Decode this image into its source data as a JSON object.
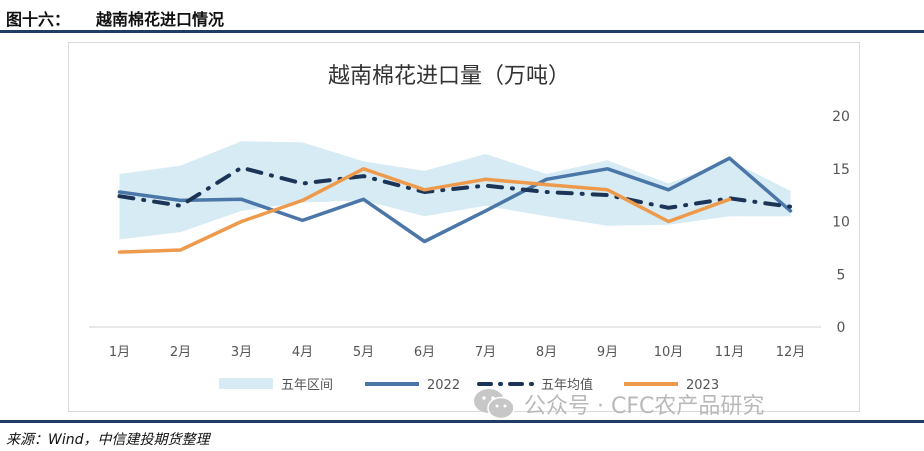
{
  "header": {
    "figure_label": "图十六：",
    "figure_title": "越南棉花进口情况"
  },
  "source": "来源：Wind，中信建投期货整理",
  "watermark": {
    "text": "公众号 · CFC农产品研究",
    "icon": "wechat-icon"
  },
  "chart_data": {
    "type": "line",
    "title": "越南棉花进口量（万吨）",
    "xlabel": "",
    "ylabel": "",
    "categories": [
      "1月",
      "2月",
      "3月",
      "4月",
      "5月",
      "6月",
      "7月",
      "8月",
      "9月",
      "10月",
      "11月",
      "12月"
    ],
    "ylim": [
      0,
      20
    ],
    "yticks": [
      0,
      5,
      10,
      15,
      20
    ],
    "y_axis_side": "right",
    "grid": false,
    "legend_position": "bottom",
    "band": {
      "name": "五年区间",
      "color": "#d6ebf3",
      "low": [
        8.3,
        9.0,
        11.0,
        11.8,
        12.0,
        10.5,
        11.5,
        10.5,
        9.6,
        9.7,
        10.5,
        10.5
      ],
      "high": [
        14.5,
        15.3,
        17.6,
        17.5,
        15.7,
        14.8,
        16.4,
        14.5,
        15.8,
        13.6,
        15.8,
        12.9
      ]
    },
    "series": [
      {
        "name": "2022",
        "color": "#4a76a8",
        "style": "solid",
        "values": [
          12.8,
          12.0,
          12.1,
          10.1,
          12.1,
          8.1,
          11.0,
          14.0,
          15.0,
          13.0,
          16.0,
          11.0
        ]
      },
      {
        "name": "五年均值",
        "color": "#1c3557",
        "style": "dashdot",
        "values": [
          12.4,
          11.5,
          15.1,
          13.6,
          14.3,
          12.8,
          13.4,
          12.8,
          12.5,
          11.3,
          12.2,
          11.4
        ]
      },
      {
        "name": "2023",
        "color": "#ee9a4d",
        "style": "solid",
        "values": [
          7.1,
          7.3,
          10.0,
          12.0,
          15.0,
          13.0,
          14.0,
          13.5,
          13.0,
          10.0,
          12.1,
          null
        ]
      }
    ]
  }
}
